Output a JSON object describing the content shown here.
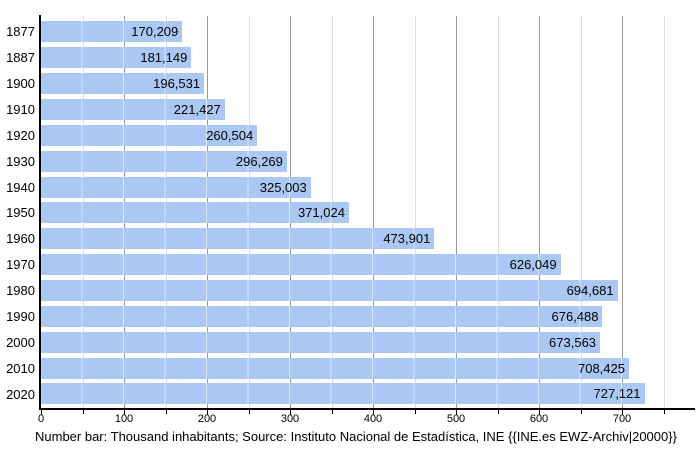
{
  "chart_data": {
    "type": "bar",
    "orientation": "horizontal",
    "title": "",
    "xlabel": "",
    "ylabel": "",
    "categories": [
      "1877",
      "1887",
      "1900",
      "1910",
      "1920",
      "1930",
      "1940",
      "1950",
      "1960",
      "1970",
      "1980",
      "1990",
      "2000",
      "2010",
      "2020"
    ],
    "values": [
      170209,
      181149,
      196531,
      221427,
      260504,
      296269,
      325003,
      371024,
      473901,
      626049,
      694681,
      676488,
      673563,
      708425,
      727121
    ],
    "value_labels": [
      "170,209",
      "181,149",
      "196,531",
      "221,427",
      "260,504",
      "296,269",
      "325,003",
      "371,024",
      "473,901",
      "626,049",
      "694,681",
      "676,488",
      "673,563",
      "708,425",
      "727,121"
    ],
    "unit": "thousand inhabitants",
    "x_tick_labels": [
      "0",
      "100",
      "200",
      "300",
      "400",
      "500",
      "600",
      "700"
    ],
    "x_major_ticks": [
      0,
      100,
      200,
      300,
      400,
      500,
      600,
      700
    ],
    "x_minor_tick_step": 50,
    "x_axis_max_tick": 750,
    "xlim": [
      0,
      790
    ],
    "grid": true,
    "legend_position": "none",
    "bar_color": "#abc7f3",
    "major_grid_color": "#999999",
    "minor_grid_color": "#dddddd",
    "axis_color": "#000000",
    "caption": "Number bar: Thousand inhabitants; Source: Instituto Nacional de Estadística, INE {{INE.es EWZ-Archiv|20000}}"
  }
}
